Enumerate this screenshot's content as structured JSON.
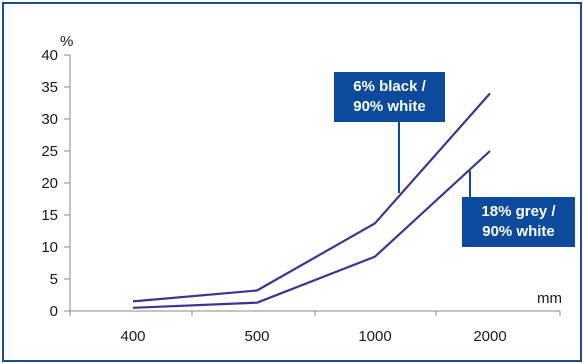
{
  "chart_data": {
    "type": "line",
    "categories": [
      "400",
      "500",
      "1000",
      "2000"
    ],
    "xunit": "mm",
    "yunit": "%",
    "ylim": [
      0,
      40
    ],
    "yticks": [
      "0",
      "5",
      "10",
      "15",
      "20",
      "25",
      "30",
      "35",
      "40"
    ],
    "grid": false,
    "series": [
      {
        "name": "6% black / 90% white",
        "values": [
          1.5,
          3.2,
          13.7,
          34
        ]
      },
      {
        "name": "18% grey / 90% white",
        "values": [
          0.5,
          1.3,
          8.5,
          25
        ]
      }
    ],
    "annotations": [
      {
        "lines": [
          "6% black /",
          "90% white"
        ]
      },
      {
        "lines": [
          "18%  grey /",
          "90% white"
        ]
      }
    ]
  },
  "colors": {
    "line": "#3a3592",
    "callout_bg": "#0b4a9c",
    "frame": "#1f4a96",
    "axis": "#888888"
  }
}
